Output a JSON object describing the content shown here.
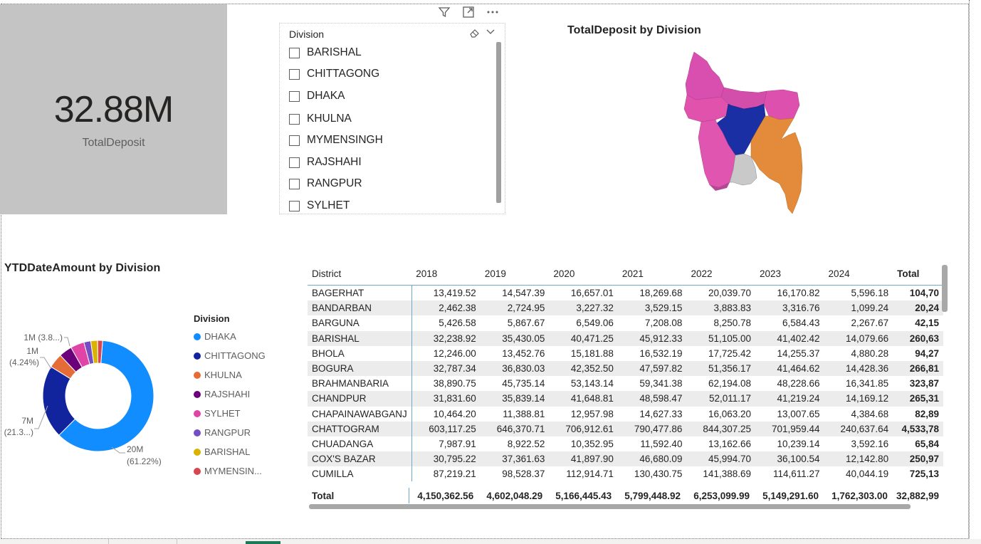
{
  "kpi": {
    "value": "32.88M",
    "label": "TotalDeposit"
  },
  "slicer": {
    "title": "Division",
    "items": [
      "BARISHAL",
      "CHITTAGONG",
      "DHAKA",
      "KHULNA",
      "MYMENSINGH",
      "RAJSHAHI",
      "RANGPUR",
      "SYLHET"
    ]
  },
  "visual_header_icons": [
    "filter-icon",
    "focus-mode-icon",
    "more-options-icon"
  ],
  "map": {
    "title": "TotalDeposit by Division",
    "colors": {
      "dhaka": "#1a2fa3",
      "chittagong": "#e38a3a",
      "sylhet": "#d94fa8",
      "rajshahi": "#e050a8",
      "rangpur": "#d14fb0",
      "khulna": "#e055b0",
      "barishal": "#c8c8c8",
      "mymensingh": "#c84aa8"
    }
  },
  "donut": {
    "title": "YTDDateAmount by Division",
    "labels": {
      "dhaka": "20M",
      "dhaka_pct": "(61.22%)",
      "chittagong": "7M",
      "chittagong_pct": "(21.3...)",
      "khulna": "1M",
      "khulna_pct": "(4.24%)",
      "rajshahi": "1M (3.8...)"
    }
  },
  "legend": {
    "title": "Division",
    "items": [
      {
        "name": "DHAKA",
        "color": "#118dff"
      },
      {
        "name": "CHITTAGONG",
        "color": "#12239e"
      },
      {
        "name": "KHULNA",
        "color": "#e66c37"
      },
      {
        "name": "RAJSHAHI",
        "color": "#6b007b"
      },
      {
        "name": "SYLHET",
        "color": "#e044a7"
      },
      {
        "name": "RANGPUR",
        "color": "#744ec2"
      },
      {
        "name": "BARISHAL",
        "color": "#d9b300"
      },
      {
        "name": "MYMENSIN...",
        "color": "#d64550"
      }
    ]
  },
  "chart_data": {
    "type": "pie",
    "title": "YTDDateAmount by Division",
    "categories": [
      "DHAKA",
      "CHITTAGONG",
      "KHULNA",
      "RAJSHAHI",
      "SYLHET",
      "RANGPUR",
      "BARISHAL",
      "MYMENSINGH"
    ],
    "values": [
      61.22,
      21.3,
      4.24,
      3.8,
      4.0,
      2.0,
      2.0,
      1.44
    ],
    "unit": "%"
  },
  "table": {
    "headers": [
      "District",
      "2018",
      "2019",
      "2020",
      "2021",
      "2022",
      "2023",
      "2024",
      "Total"
    ],
    "rows": [
      [
        "BAGERHAT",
        "13,419.52",
        "14,547.39",
        "16,657.01",
        "18,269.68",
        "20,039.70",
        "16,170.82",
        "5,596.18",
        "104,70"
      ],
      [
        "BANDARBAN",
        "2,462.38",
        "2,724.95",
        "3,227.32",
        "3,529.15",
        "3,883.83",
        "3,316.76",
        "1,099.24",
        "20,24"
      ],
      [
        "BARGUNA",
        "5,426.58",
        "5,867.67",
        "6,549.06",
        "7,208.08",
        "8,250.78",
        "6,584.43",
        "2,267.67",
        "42,15"
      ],
      [
        "BARISHAL",
        "32,238.92",
        "35,430.05",
        "40,471.25",
        "45,912.33",
        "51,105.00",
        "41,402.42",
        "14,079.66",
        "260,63"
      ],
      [
        "BHOLA",
        "12,246.00",
        "13,452.76",
        "15,181.88",
        "16,532.19",
        "17,725.42",
        "14,255.37",
        "4,880.28",
        "94,27"
      ],
      [
        "BOGURA",
        "32,787.34",
        "36,830.03",
        "42,352.50",
        "47,597.82",
        "51,356.17",
        "41,464.62",
        "14,428.36",
        "266,81"
      ],
      [
        "BRAHMANBARIA",
        "38,890.75",
        "45,735.14",
        "53,143.14",
        "59,341.38",
        "62,194.08",
        "48,228.66",
        "16,341.85",
        "323,87"
      ],
      [
        "CHANDPUR",
        "31,831.60",
        "35,839.14",
        "41,648.81",
        "48,598.47",
        "52,011.17",
        "41,219.24",
        "14,169.12",
        "265,31"
      ],
      [
        "CHAPAINAWABGANJ",
        "10,464.20",
        "11,388.81",
        "12,957.98",
        "14,627.33",
        "16,063.20",
        "13,007.65",
        "4,384.68",
        "82,89"
      ],
      [
        "CHATTOGRAM",
        "603,117.25",
        "646,370.71",
        "706,912.61",
        "790,477.86",
        "844,307.25",
        "701,959.44",
        "240,637.64",
        "4,533,78"
      ],
      [
        "CHUADANGA",
        "7,987.91",
        "8,922.52",
        "10,352.95",
        "11,592.40",
        "13,162.66",
        "10,239.14",
        "3,592.16",
        "65,84"
      ],
      [
        "COX'S BAZAR",
        "30,795.22",
        "37,361.63",
        "41,897.90",
        "46,680.09",
        "45,994.70",
        "36,100.54",
        "12,142.80",
        "250,97"
      ],
      [
        "CUMILLA",
        "87,219.21",
        "98,528.37",
        "112,914.71",
        "130,430.75",
        "141,388.69",
        "114,611.27",
        "40,044.19",
        "725,13"
      ]
    ],
    "total": [
      "Total",
      "4,150,362.56",
      "4,602,048.29",
      "5,166,445.43",
      "5,799,448.92",
      "6,253,099.99",
      "5,149,291.60",
      "1,762,303.00",
      "32,882,99"
    ]
  }
}
